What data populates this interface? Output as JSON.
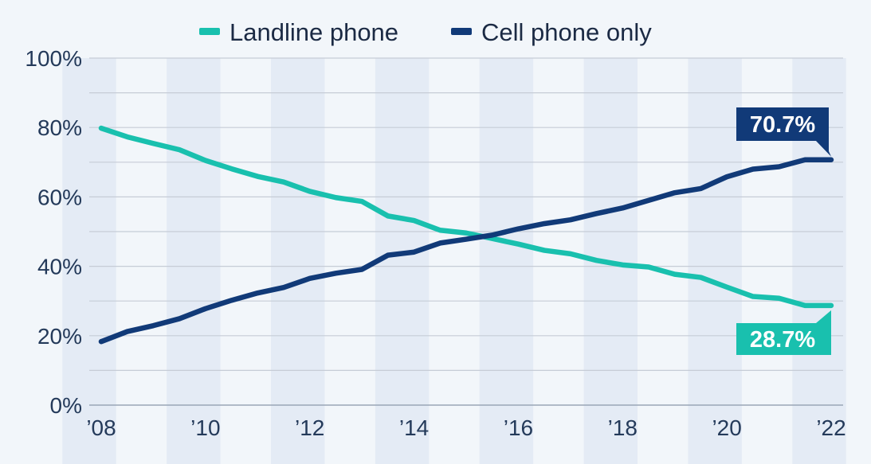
{
  "chart_data": {
    "type": "line",
    "x": [
      "2008",
      "2008.5",
      "2009",
      "2009.5",
      "2010",
      "2010.5",
      "2011",
      "2011.5",
      "2012",
      "2012.5",
      "2013",
      "2013.5",
      "2014",
      "2014.5",
      "2015",
      "2015.5",
      "2016",
      "2016.5",
      "2017",
      "2017.5",
      "2018",
      "2018.5",
      "2019",
      "2019.5",
      "2020",
      "2020.5",
      "2021",
      "2021.5",
      "2022"
    ],
    "series": [
      {
        "name": "Landline phone",
        "color": "#19c0ae",
        "values": [
          79.8,
          77.3,
          75.4,
          73.6,
          70.5,
          68.1,
          65.9,
          64.3,
          61.6,
          59.8,
          58.7,
          54.5,
          53.2,
          50.4,
          49.6,
          48.0,
          46.4,
          44.6,
          43.6,
          41.7,
          40.4,
          39.8,
          37.7,
          36.8,
          34.0,
          31.3,
          30.8,
          28.7,
          28.7
        ],
        "end_label": "28.7%"
      },
      {
        "name": "Cell phone only",
        "color": "#113a78",
        "values": [
          18.3,
          21.2,
          22.9,
          24.9,
          27.8,
          30.2,
          32.3,
          33.9,
          36.5,
          38.0,
          39.1,
          43.2,
          44.1,
          46.7,
          47.8,
          49.0,
          50.8,
          52.3,
          53.4,
          55.2,
          56.8,
          59.0,
          61.2,
          62.4,
          65.8,
          68.0,
          68.7,
          70.7,
          70.7
        ]
      }
    ],
    "y_ticks": [
      "0%",
      "20%",
      "40%",
      "60%",
      "80%",
      "100%"
    ],
    "x_ticks": [
      "’08",
      "’10",
      "’12",
      "’14",
      "’16",
      "’18",
      "’20",
      "’22"
    ],
    "x_tick_years": [
      2008,
      2010,
      2012,
      2014,
      2016,
      2018,
      2020,
      2022
    ],
    "ylim": [
      0,
      100
    ],
    "xlim": [
      2008,
      2022
    ],
    "legend": "top-center",
    "callouts": {
      "cell": "70.7%",
      "landline": "28.7%"
    },
    "grid": true
  }
}
